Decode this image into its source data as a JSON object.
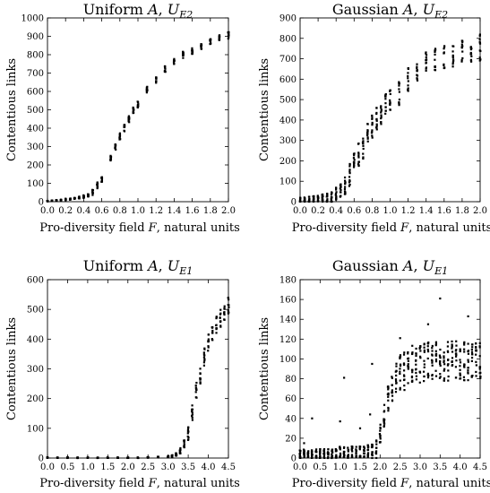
{
  "chart_data": [
    {
      "type": "scatter",
      "title": "Uniform A, U_E2",
      "title_parts": {
        "a": "Uniform ",
        "b": "A",
        "c": ", ",
        "d": "U",
        "sub": "E2"
      },
      "xlabel": "Pro-diversity field F, natural units",
      "xlabel_parts": {
        "a": "Pro-diversity field ",
        "b": "F",
        "c": ", natural units"
      },
      "ylabel": "Contentious links",
      "xlim": [
        0,
        2.0
      ],
      "ylim": [
        0,
        1000
      ],
      "xticks": [
        "0.0",
        "0.2",
        "0.4",
        "0.6",
        "0.8",
        "1.0",
        "1.2",
        "1.4",
        "1.6",
        "1.8",
        "2.0"
      ],
      "xtick_values": [
        0,
        0.2,
        0.4,
        0.6,
        0.8,
        1.0,
        1.2,
        1.4,
        1.6,
        1.8,
        2.0
      ],
      "yticks": [
        "0",
        "100",
        "200",
        "300",
        "400",
        "500",
        "600",
        "700",
        "800",
        "900",
        "1000"
      ],
      "ytick_values": [
        0,
        100,
        200,
        300,
        400,
        500,
        600,
        700,
        800,
        900,
        1000
      ],
      "curve": {
        "x": [
          0.0,
          0.05,
          0.1,
          0.15,
          0.2,
          0.25,
          0.3,
          0.35,
          0.4,
          0.45,
          0.5,
          0.55,
          0.6,
          0.7,
          0.75,
          0.8,
          0.85,
          0.9,
          0.95,
          1.0,
          1.1,
          1.2,
          1.3,
          1.4,
          1.5,
          1.6,
          1.7,
          1.8,
          1.9,
          2.0
        ],
        "y": [
          3,
          5,
          7,
          9,
          12,
          15,
          18,
          22,
          28,
          35,
          50,
          90,
          120,
          240,
          300,
          355,
          400,
          450,
          500,
          530,
          610,
          660,
          720,
          760,
          800,
          820,
          845,
          870,
          890,
          905
        ],
        "spread": [
          2,
          2,
          3,
          3,
          4,
          4,
          5,
          6,
          8,
          10,
          15,
          18,
          20,
          18,
          18,
          18,
          18,
          18,
          18,
          18,
          18,
          18,
          18,
          18,
          18,
          18,
          18,
          18,
          18,
          18
        ]
      },
      "series": [
        {
          "points_per_x": 10
        }
      ]
    },
    {
      "type": "scatter",
      "title": "Gaussian A, U_E2",
      "title_parts": {
        "a": "Gaussian ",
        "b": "A",
        "c": ", ",
        "d": "U",
        "sub": "E2"
      },
      "xlabel": "Pro-diversity field F, natural units",
      "xlabel_parts": {
        "a": "Pro-diversity field ",
        "b": "F",
        "c": ", natural units"
      },
      "ylabel": "Contentious links",
      "xlim": [
        0,
        2.0
      ],
      "ylim": [
        0,
        900
      ],
      "xticks": [
        "0.0",
        "0.2",
        "0.4",
        "0.6",
        "0.8",
        "1.0",
        "1.2",
        "1.4",
        "1.6",
        "1.8",
        "2.0"
      ],
      "xtick_values": [
        0,
        0.2,
        0.4,
        0.6,
        0.8,
        1.0,
        1.2,
        1.4,
        1.6,
        1.8,
        2.0
      ],
      "yticks": [
        "0",
        "100",
        "200",
        "300",
        "400",
        "500",
        "600",
        "700",
        "800",
        "900"
      ],
      "ytick_values": [
        0,
        100,
        200,
        300,
        400,
        500,
        600,
        700,
        800,
        900
      ],
      "curve": {
        "x": [
          0.0,
          0.05,
          0.1,
          0.15,
          0.2,
          0.25,
          0.3,
          0.35,
          0.4,
          0.45,
          0.5,
          0.55,
          0.6,
          0.65,
          0.7,
          0.75,
          0.8,
          0.85,
          0.9,
          0.95,
          1.0,
          1.1,
          1.2,
          1.3,
          1.4,
          1.5,
          1.6,
          1.7,
          1.8,
          1.9,
          2.0
        ],
        "y": [
          5,
          8,
          10,
          12,
          15,
          18,
          20,
          25,
          35,
          50,
          80,
          130,
          180,
          230,
          270,
          330,
          370,
          410,
          440,
          470,
          490,
          530,
          600,
          640,
          680,
          700,
          710,
          720,
          730,
          735,
          750
        ],
        "spread": [
          15,
          15,
          18,
          18,
          20,
          20,
          25,
          30,
          35,
          40,
          45,
          55,
          60,
          60,
          60,
          60,
          60,
          60,
          60,
          60,
          60,
          60,
          60,
          55,
          60,
          60,
          60,
          60,
          60,
          60,
          70
        ]
      },
      "series": [
        {
          "points_per_x": 12
        }
      ]
    },
    {
      "type": "scatter",
      "title": "Uniform A, U_E1",
      "title_parts": {
        "a": "Uniform ",
        "b": "A",
        "c": ", ",
        "d": "U",
        "sub": "E1"
      },
      "xlabel": "Pro-diversity field F, natural units",
      "xlabel_parts": {
        "a": "Pro-diversity field ",
        "b": "F",
        "c": ", natural units"
      },
      "ylabel": "Contentious links",
      "xlim": [
        0,
        4.5
      ],
      "ylim": [
        0,
        600
      ],
      "xticks": [
        "0.0",
        "0.5",
        "1.0",
        "1.5",
        "2.0",
        "2.5",
        "3.0",
        "3.5",
        "4.0",
        "4.5"
      ],
      "xtick_values": [
        0,
        0.5,
        1.0,
        1.5,
        2.0,
        2.5,
        3.0,
        3.5,
        4.0,
        4.5
      ],
      "yticks": [
        "0",
        "100",
        "200",
        "300",
        "400",
        "500",
        "600"
      ],
      "ytick_values": [
        0,
        100,
        200,
        300,
        400,
        500,
        600
      ],
      "curve": {
        "x": [
          0.0,
          0.25,
          0.5,
          0.75,
          1.0,
          1.25,
          1.5,
          1.75,
          2.0,
          2.25,
          2.5,
          2.75,
          3.0,
          3.1,
          3.2,
          3.3,
          3.4,
          3.5,
          3.6,
          3.7,
          3.8,
          3.9,
          4.0,
          4.1,
          4.2,
          4.3,
          4.4,
          4.5
        ],
        "y": [
          1,
          1,
          1,
          1,
          1,
          1,
          1,
          1,
          1,
          1,
          2,
          3,
          4,
          6,
          12,
          25,
          45,
          80,
          150,
          230,
          280,
          340,
          390,
          420,
          450,
          470,
          490,
          510
        ],
        "spread": [
          1,
          1,
          1,
          1,
          1,
          1,
          1,
          1,
          1,
          1,
          1,
          2,
          3,
          4,
          6,
          10,
          15,
          25,
          30,
          30,
          30,
          30,
          30,
          30,
          30,
          30,
          30,
          30
        ]
      },
      "series": [
        {
          "points_per_x": 10
        }
      ]
    },
    {
      "type": "scatter",
      "title": "Gaussian A, U_E1",
      "title_parts": {
        "a": "Gaussian ",
        "b": "A",
        "c": ", ",
        "d": "U",
        "sub": "E1"
      },
      "xlabel": "Pro-diversity field F, natural units",
      "xlabel_parts": {
        "a": "Pro-diversity field ",
        "b": "F",
        "c": ", natural units"
      },
      "ylabel": "Contentious links",
      "xlim": [
        0,
        4.5
      ],
      "ylim": [
        0,
        180
      ],
      "xticks": [
        "0.0",
        "0.5",
        "1.0",
        "1.5",
        "2.0",
        "2.5",
        "3.0",
        "3.5",
        "4.0",
        "4.5"
      ],
      "xtick_values": [
        0,
        0.5,
        1.0,
        1.5,
        2.0,
        2.5,
        3.0,
        3.5,
        4.0,
        4.5
      ],
      "yticks": [
        "0",
        "20",
        "40",
        "60",
        "80",
        "100",
        "120",
        "140",
        "160",
        "180"
      ],
      "ytick_values": [
        0,
        20,
        40,
        60,
        80,
        100,
        120,
        140,
        160,
        180
      ],
      "curve": {
        "x": [
          0.0,
          0.1,
          0.2,
          0.3,
          0.4,
          0.5,
          0.6,
          0.7,
          0.8,
          0.9,
          1.0,
          1.1,
          1.2,
          1.3,
          1.4,
          1.5,
          1.6,
          1.7,
          1.8,
          1.9,
          2.0,
          2.1,
          2.2,
          2.3,
          2.4,
          2.5,
          2.6,
          2.7,
          2.8,
          2.9,
          3.0,
          3.1,
          3.2,
          3.3,
          3.4,
          3.5,
          3.6,
          3.7,
          3.8,
          3.9,
          4.0,
          4.1,
          4.2,
          4.3,
          4.4,
          4.5
        ],
        "y": [
          3,
          3,
          3,
          3,
          3,
          3,
          3,
          3,
          3,
          3,
          4,
          4,
          4,
          4,
          4,
          4,
          4,
          5,
          6,
          10,
          25,
          45,
          60,
          70,
          78,
          85,
          88,
          92,
          95,
          95,
          96,
          97,
          97,
          98,
          98,
          98,
          98,
          98,
          98,
          98,
          98,
          98,
          98,
          98,
          98,
          98
        ],
        "spread": [
          6,
          6,
          6,
          6,
          6,
          6,
          6,
          6,
          6,
          6,
          8,
          8,
          8,
          8,
          8,
          8,
          8,
          8,
          8,
          10,
          12,
          15,
          15,
          15,
          18,
          20,
          20,
          20,
          20,
          20,
          20,
          20,
          20,
          20,
          20,
          20,
          20,
          20,
          20,
          20,
          20,
          20,
          20,
          20,
          20,
          18
        ]
      },
      "outliers": [
        {
          "x": 0.3,
          "y": 40
        },
        {
          "x": 1.0,
          "y": 37
        },
        {
          "x": 1.1,
          "y": 81
        },
        {
          "x": 1.8,
          "y": 95
        },
        {
          "x": 1.75,
          "y": 44
        },
        {
          "x": 3.5,
          "y": 161
        },
        {
          "x": 4.2,
          "y": 143
        },
        {
          "x": 3.2,
          "y": 135
        },
        {
          "x": 0.1,
          "y": 15
        },
        {
          "x": 1.5,
          "y": 30
        },
        {
          "x": 2.5,
          "y": 121
        }
      ],
      "series": [
        {
          "points_per_x": 12
        }
      ]
    }
  ]
}
